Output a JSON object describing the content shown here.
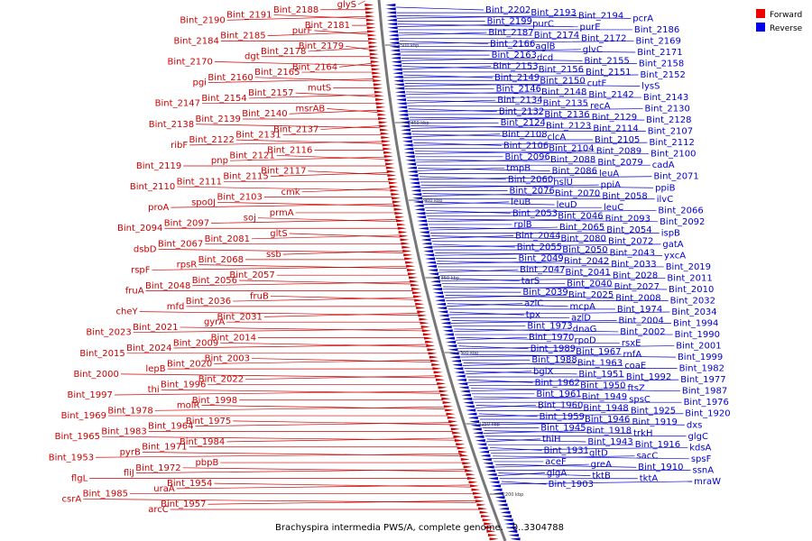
{
  "caption": "Brachyspira intermedia PWS/A, complete genome. - 0..3304788",
  "legend": [
    {
      "label": "Forward",
      "color": "#ee0000"
    },
    {
      "label": "Reverse",
      "color": "#0000ee"
    }
  ],
  "colors": {
    "forward": "#cc0000",
    "reverse": "#0000cc",
    "backbone": "#777777"
  },
  "ticks": [
    "2500 kbp",
    "2450 kbp",
    "2400 kbp",
    "2350 kbp",
    "2300 kbp",
    "2250 kbp",
    "2200 kbp"
  ],
  "forward_labels": [
    "glyS",
    "Bint_2188",
    "Bint_2191",
    "Bint_2190",
    "Bint_2181",
    "purF",
    "Bint_2185",
    "Bint_2184",
    "Bint_2179",
    "Bint_2178",
    "dgt",
    "Bint_2170",
    "Bint_2164",
    "Bint_2165",
    "Bint_2160",
    "pgi",
    "mutS",
    "Bint_2157",
    "Bint_2154",
    "Bint_2147",
    "msrAB",
    "Bint_2140",
    "Bint_2139",
    "Bint_2138",
    "Bint_2137",
    "Bint_2131",
    "Bint_2122",
    "ribF",
    "Bint_2116",
    "Bint_2121",
    "pnp",
    "Bint_2119",
    "Bint_2117",
    "Bint_2115",
    "Bint_2111",
    "Bint_2110",
    "cmk",
    "Bint_2103",
    "spo0J",
    "proA",
    "prmA",
    "soj",
    "Bint_2097",
    "Bint_2094",
    "gltS",
    "Bint_2081",
    "Bint_2067",
    "dsbD",
    "ssb",
    "Bint_2068",
    "rpsR",
    "rspF",
    "Bint_2057",
    "Bint_2056",
    "Bint_2048",
    "fruA",
    "fruB",
    "Bint_2036",
    "mfd",
    "cheY",
    "Bint_2031",
    "gyrA",
    "Bint_2021",
    "Bint_2023",
    "Bint_2014",
    "Bint_2009",
    "Bint_2024",
    "Bint_2015",
    "Bint_2003",
    "Bint_2020",
    "lepB",
    "Bint_2000",
    "Bint_2022",
    "Bint_1996",
    "thi",
    "Bint_1997",
    "Bint_1998",
    "molR",
    "Bint_1978",
    "Bint_1969",
    "Bint_1975",
    "Bint_1964",
    "Bint_1983",
    "Bint_1965",
    "Bint_1984",
    "Bint_1971",
    "pyrB",
    "Bint_1953",
    "pbpB",
    "Bint_1972",
    "fliJ",
    "flgL",
    "Bint_1954",
    "uraA",
    "Bint_1985",
    "csrA",
    "Bint_1957",
    "arcC"
  ],
  "reverse_labels": [
    "Bint_2202",
    "Bint_2193",
    "Bint_2194",
    "pcrA",
    "Bint_2199",
    "purC",
    "purE",
    "Bint_2186",
    "Bint_2187",
    "Bint_2174",
    "Bint_2172",
    "Bint_2169",
    "Bint_2166",
    "aglB",
    "glvC",
    "Bint_2171",
    "Bint_2163",
    "dcd",
    "Bint_2155",
    "Bint_2158",
    "Bint_2153",
    "Bint_2156",
    "Bint_2151",
    "Bint_2152",
    "Bint_2149",
    "Bint_2150",
    "cutF",
    "lysS",
    "Bint_2146",
    "Bint_2148",
    "Bint_2142",
    "Bint_2143",
    "Bint_2134",
    "Bint_2135",
    "recA",
    "Bint_2130",
    "Bint_2132",
    "Bint_2136",
    "Bint_2129",
    "Bint_2128",
    "Bint_2124",
    "Bint_2123",
    "Bint_2114",
    "Bint_2107",
    "Bint_2108",
    "clcA",
    "Bint_2105",
    "Bint_2112",
    "Bint_2106",
    "Bint_2104",
    "Bint_2089",
    "Bint_2100",
    "Bint_2096",
    "Bint_2088",
    "Bint_2079",
    "cadA",
    "tmpB",
    "Bint_2086",
    "leuA",
    "Bint_2071",
    "Bint_2060",
    "hslU",
    "ppiA",
    "ppiB",
    "Bint_2076",
    "Bint_2070",
    "Bint_2058",
    "ilvC",
    "leuB",
    "leuD",
    "leuC",
    "Bint_2066",
    "Bint_2053",
    "Bint_2046",
    "Bint_2093",
    "Bint_2092",
    "rplB",
    "Bint_2065",
    "Bint_2054",
    "ispB",
    "Bint_2044",
    "Bint_2080",
    "Bint_2072",
    "gatA",
    "Bint_2055",
    "Bint_2050",
    "Bint_2043",
    "yxcA",
    "Bint_2049",
    "Bint_2042",
    "Bint_2033",
    "Bint_2019",
    "Bint_2047",
    "Bint_2041",
    "Bint_2028",
    "Bint_2011",
    "tarS",
    "Bint_2040",
    "Bint_2027",
    "Bint_2010",
    "Bint_2039",
    "Bint_2025",
    "Bint_2008",
    "Bint_2032",
    "azlC",
    "mcpA",
    "Bint_1974",
    "Bint_2034",
    "tpx",
    "azlD",
    "Bint_2004",
    "Bint_1994",
    "Bint_1973",
    "dnaG",
    "Bint_2002",
    "Bint_1990",
    "Bint_1970",
    "rpoD",
    "rsxE",
    "Bint_2001",
    "Bint_1989",
    "Bint_1967",
    "rnfA",
    "Bint_1999",
    "Bint_1988",
    "Bint_1963",
    "coaE",
    "Bint_1982",
    "bglX",
    "Bint_1951",
    "Bint_1992",
    "Bint_1977",
    "Bint_1962",
    "Bint_1950",
    "ftsZ",
    "Bint_1987",
    "Bint_1961",
    "Bint_1949",
    "spsC",
    "Bint_1976",
    "Bint_1960",
    "Bint_1948",
    "Bint_1925",
    "Bint_1920",
    "Bint_1959",
    "Bint_1946",
    "Bint_1919",
    "dxs",
    "Bint_1945",
    "Bint_1918",
    "trkH",
    "glgC",
    "thiH",
    "Bint_1943",
    "Bint_1916",
    "kdsA",
    "Bint_1931",
    "gltD",
    "sacC",
    "spsF",
    "aceF",
    "greA",
    "Bint_1910",
    "ssnA",
    "glgA",
    "tktB",
    "tktA",
    "mraW",
    "Bint_1903"
  ]
}
